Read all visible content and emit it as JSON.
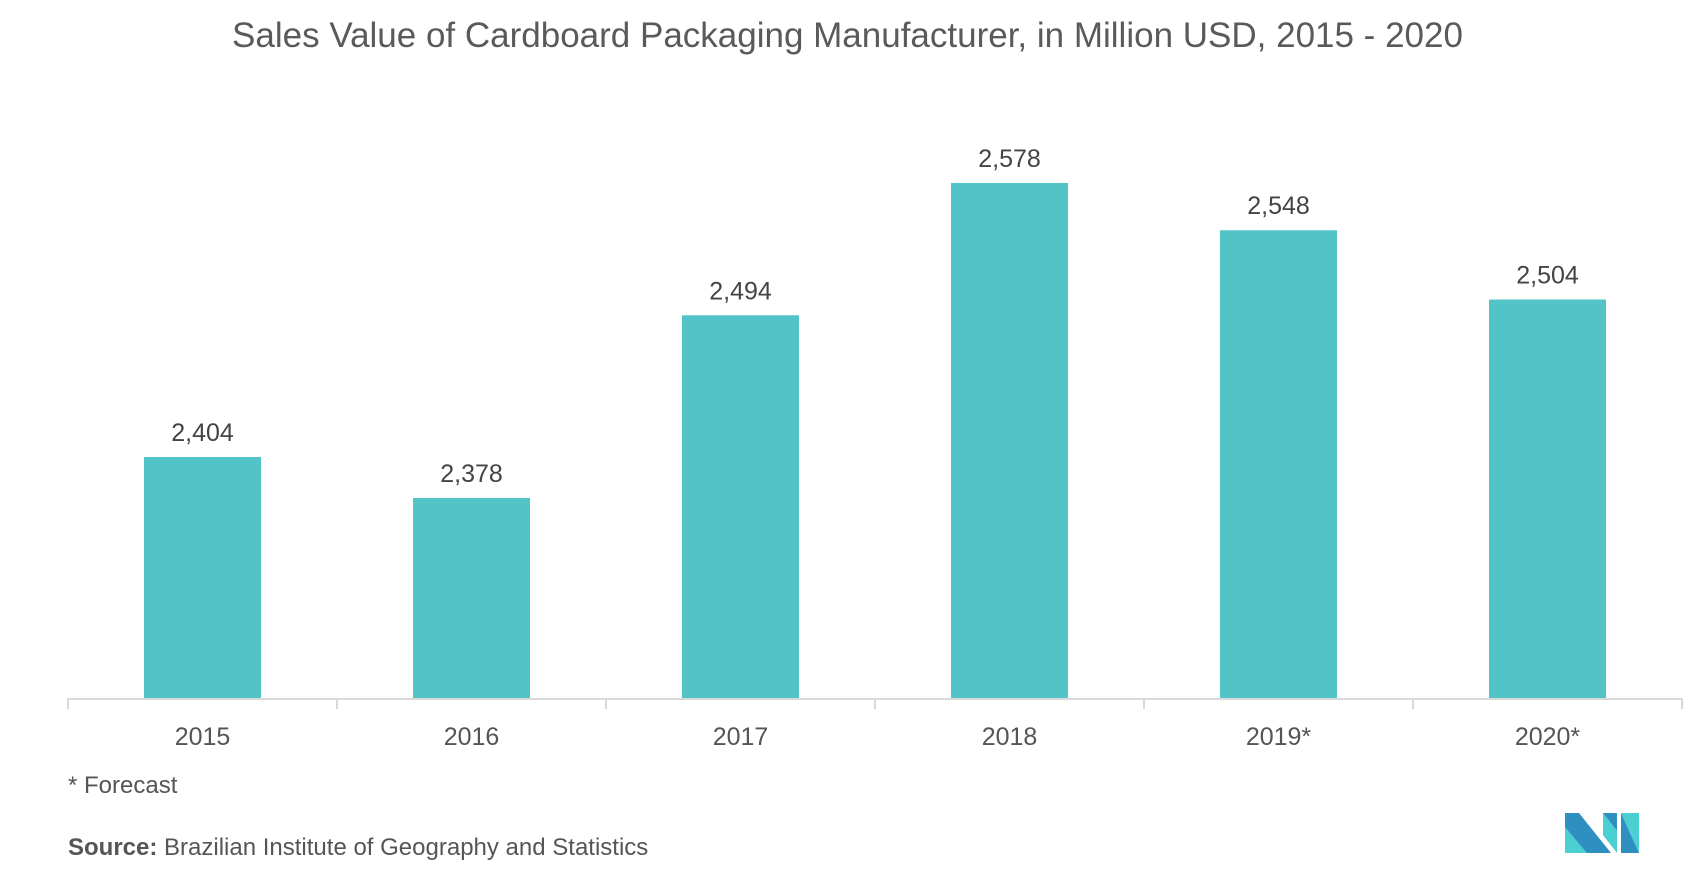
{
  "chart_data": {
    "type": "bar",
    "title": "Sales Value of Cardboard Packaging Manufacturer, in Million USD, 2015 - 2020",
    "categories": [
      "2015",
      "2016",
      "2017",
      "2018",
      "2019*",
      "2020*"
    ],
    "values": [
      2404,
      2378,
      2494,
      2578,
      2548,
      2504
    ],
    "value_labels": [
      "2,404",
      "2,378",
      "2,494",
      "2,578",
      "2,548",
      "2,504"
    ],
    "xlabel": "",
    "ylabel": "",
    "ylim": [
      2251,
      2600
    ],
    "grid": false,
    "bar_color": "#52c4c7"
  },
  "footnote": "* Forecast",
  "source_label": "Source:",
  "source_text": "Brazilian Institute of Geography and Statistics",
  "logo_text": "MI"
}
